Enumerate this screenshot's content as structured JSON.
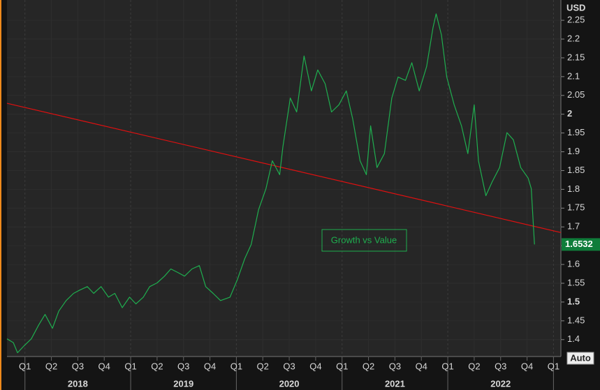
{
  "chart_data": {
    "type": "line",
    "y_axis_label": "USD",
    "annotation": "Growth vs Value",
    "auto_button": "Auto",
    "series": [
      {
        "name": "Growth vs Value",
        "color": "#1fae4f",
        "x": [
          2017.83,
          2017.89,
          2017.93,
          2017.99,
          2018.06,
          2018.13,
          2018.19,
          2018.26,
          2018.32,
          2018.39,
          2018.46,
          2018.52,
          2018.59,
          2018.65,
          2018.72,
          2018.79,
          2018.85,
          2018.92,
          2018.99,
          2019.05,
          2019.12,
          2019.18,
          2019.25,
          2019.32,
          2019.38,
          2019.45,
          2019.51,
          2019.58,
          2019.65,
          2019.71,
          2019.78,
          2019.85,
          2019.94,
          2020.01,
          2020.08,
          2020.14,
          2020.21,
          2020.28,
          2020.34,
          2020.41,
          2020.44,
          2020.51,
          2020.57,
          2020.64,
          2020.71,
          2020.77,
          2020.84,
          2020.9,
          2020.97,
          2021.04,
          2021.1,
          2021.17,
          2021.23,
          2021.27,
          2021.33,
          2021.4,
          2021.47,
          2021.53,
          2021.6,
          2021.66,
          2021.73,
          2021.8,
          2021.86,
          2021.89,
          2021.94,
          2021.99,
          2022.06,
          2022.13,
          2022.19,
          2022.25,
          2022.29,
          2022.36,
          2022.42,
          2022.49,
          2022.56,
          2022.62,
          2022.69,
          2022.76,
          2022.79,
          2022.82
        ],
        "values": [
          1.402,
          1.392,
          1.365,
          1.383,
          1.402,
          1.439,
          1.467,
          1.43,
          1.476,
          1.504,
          1.523,
          1.532,
          1.541,
          1.523,
          1.541,
          1.513,
          1.523,
          1.485,
          1.513,
          1.495,
          1.513,
          1.541,
          1.551,
          1.569,
          1.588,
          1.578,
          1.569,
          1.588,
          1.597,
          1.541,
          1.523,
          1.504,
          1.513,
          1.56,
          1.616,
          1.653,
          1.746,
          1.802,
          1.876,
          1.839,
          1.913,
          2.043,
          2.006,
          2.155,
          2.062,
          2.118,
          2.081,
          2.006,
          2.025,
          2.062,
          1.988,
          1.876,
          1.839,
          1.969,
          1.858,
          1.895,
          2.043,
          2.099,
          2.09,
          2.137,
          2.062,
          2.127,
          2.23,
          2.267,
          2.211,
          2.099,
          2.025,
          1.969,
          1.895,
          2.025,
          1.876,
          1.783,
          1.82,
          1.858,
          1.951,
          1.932,
          1.858,
          1.83,
          1.802,
          1.6532
        ]
      }
    ],
    "trendline": {
      "x": [
        2017.83,
        2023.07
      ],
      "values": [
        2.029,
        1.685
      ],
      "color": "#e01010"
    },
    "xlim": [
      2017.83,
      2023.07
    ],
    "ylim": [
      1.355,
      2.304
    ],
    "yticks": [
      1.4,
      1.45,
      1.5,
      1.55,
      1.6,
      1.65,
      1.7,
      1.75,
      1.8,
      1.85,
      1.9,
      1.95,
      2,
      2.05,
      2.1,
      2.15,
      2.2,
      2.25
    ],
    "xticks": [
      {
        "value": 2018,
        "label": "Q1"
      },
      {
        "value": 2018.25,
        "label": "Q2"
      },
      {
        "value": 2018.5,
        "label": "Q3"
      },
      {
        "value": 2018.75,
        "label": "Q4"
      },
      {
        "value": 2019,
        "label": "Q1"
      },
      {
        "value": 2019.25,
        "label": "Q2"
      },
      {
        "value": 2019.5,
        "label": "Q3"
      },
      {
        "value": 2019.75,
        "label": "Q4"
      },
      {
        "value": 2020,
        "label": "Q1"
      },
      {
        "value": 2020.25,
        "label": "Q2"
      },
      {
        "value": 2020.5,
        "label": "Q3"
      },
      {
        "value": 2020.75,
        "label": "Q4"
      },
      {
        "value": 2021,
        "label": "Q1"
      },
      {
        "value": 2021.25,
        "label": "Q2"
      },
      {
        "value": 2021.5,
        "label": "Q3"
      },
      {
        "value": 2021.75,
        "label": "Q4"
      },
      {
        "value": 2022,
        "label": "Q1"
      },
      {
        "value": 2022.25,
        "label": "Q2"
      },
      {
        "value": 2022.5,
        "label": "Q3"
      },
      {
        "value": 2022.75,
        "label": "Q4"
      },
      {
        "value": 2023,
        "label": "Q1"
      }
    ],
    "years": [
      2018,
      2019,
      2020,
      2021,
      2022
    ],
    "grid": true
  }
}
